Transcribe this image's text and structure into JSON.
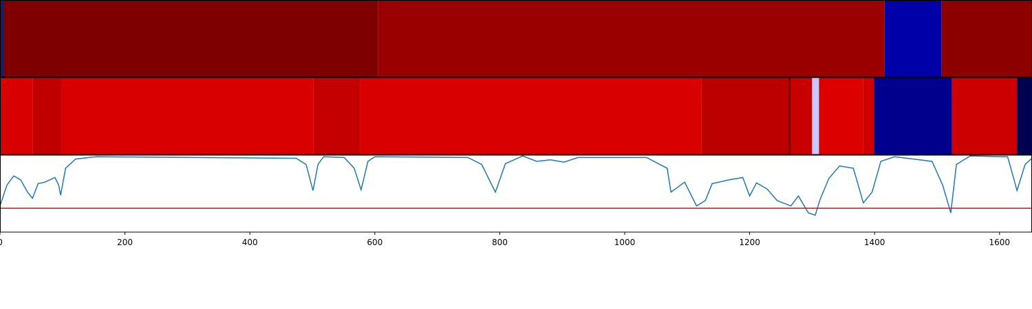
{
  "chart_data": [
    {
      "type": "heatmap",
      "xlim": [
        0,
        1652
      ],
      "edges": [
        0,
        5.5,
        605,
        1416,
        1507,
        1652
      ],
      "colors": [
        "#1a1a6e",
        "#7f0000",
        "#9a0000",
        "#0000a8",
        "#8c0000"
      ]
    },
    {
      "type": "heatmap",
      "xlim": [
        0,
        1652
      ],
      "edges": [
        0,
        52,
        98,
        502,
        577,
        1123,
        1261,
        1266,
        1300,
        1311,
        1382,
        1399,
        1524,
        1628,
        1652
      ],
      "colors": [
        "#d80000",
        "#c00000",
        "#d80000",
        "#c40000",
        "#d80000",
        "#bc0000",
        "#8a0000",
        "#c80000",
        "#c8c8ff",
        "#dc0000",
        "#d00000",
        "#00008c",
        "#cc0000",
        "#000050"
      ]
    },
    {
      "type": "line",
      "xlim": [
        0,
        1652
      ],
      "ylim": [
        0,
        1
      ],
      "xticks": [
        0,
        200,
        400,
        600,
        800,
        1000,
        1200,
        1400,
        1600
      ],
      "hline": 0.31,
      "hline_color": "#ff0000",
      "x": [
        0,
        11,
        22,
        33,
        44,
        52,
        61,
        72,
        88,
        94,
        97,
        105,
        121,
        154,
        474,
        490,
        501,
        509,
        518,
        551,
        567,
        578,
        589,
        600,
        749,
        771,
        793,
        809,
        837,
        859,
        881,
        903,
        925,
        1035,
        1068,
        1074,
        1096,
        1107,
        1115,
        1129,
        1140,
        1167,
        1189,
        1200,
        1211,
        1228,
        1244,
        1266,
        1278,
        1294,
        1305,
        1313,
        1327,
        1344,
        1366,
        1382,
        1396,
        1410,
        1432,
        1492,
        1509,
        1522,
        1531,
        1553,
        1613,
        1628,
        1641,
        1652
      ],
      "series": [
        {
          "color": "#1f77b4",
          "values": [
            0.34,
            0.61,
            0.73,
            0.68,
            0.52,
            0.44,
            0.63,
            0.65,
            0.71,
            0.61,
            0.48,
            0.83,
            0.95,
            0.98,
            0.96,
            0.88,
            0.54,
            0.88,
            0.98,
            0.97,
            0.83,
            0.55,
            0.92,
            0.98,
            0.97,
            0.88,
            0.52,
            0.89,
            0.99,
            0.92,
            0.94,
            0.91,
            0.97,
            0.97,
            0.83,
            0.52,
            0.65,
            0.47,
            0.34,
            0.41,
            0.63,
            0.68,
            0.71,
            0.47,
            0.64,
            0.56,
            0.41,
            0.34,
            0.47,
            0.25,
            0.22,
            0.43,
            0.7,
            0.86,
            0.83,
            0.38,
            0.52,
            0.92,
            0.98,
            0.92,
            0.61,
            0.25,
            0.88,
            0.99,
            0.98,
            0.54,
            0.88,
            0.96
          ]
        }
      ]
    }
  ]
}
